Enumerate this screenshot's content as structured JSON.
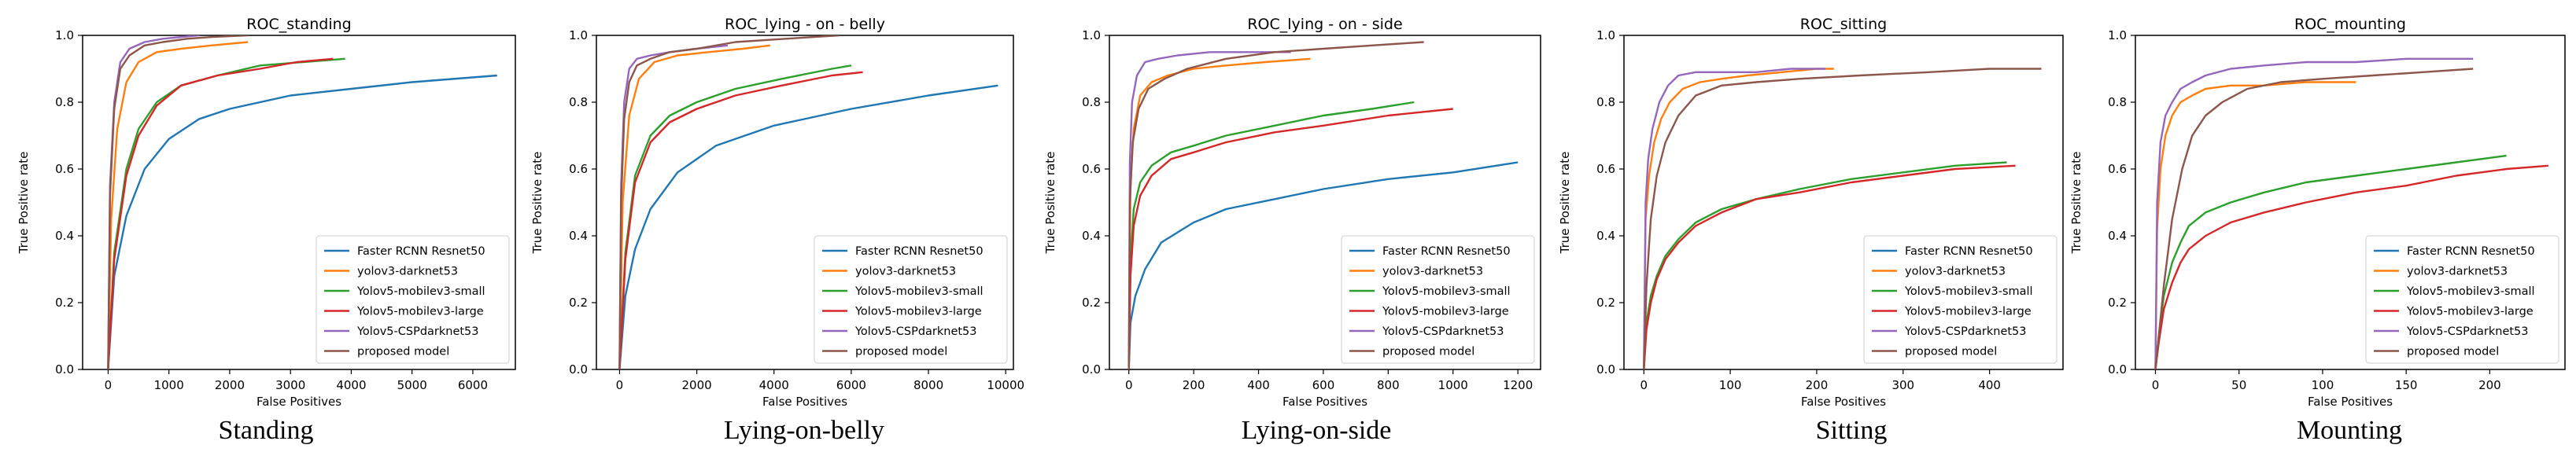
{
  "figure": {
    "colors": {
      "faster_rcnn": "#1f77b4",
      "yolov3": "#ff7f0e",
      "small": "#2ca02c",
      "large": "#d62728",
      "csp": "#9467bd",
      "proposed": "#8c564b"
    }
  },
  "chart_data": [
    {
      "type": "line",
      "title": "ROC_standing",
      "caption": "Standing",
      "xlabel": "False Positives",
      "ylabel": "True Positive rate",
      "xlim": [
        -420,
        6700
      ],
      "ylim": [
        0,
        1.0
      ],
      "xticks": [
        0,
        1000,
        2000,
        3000,
        4000,
        5000,
        6000
      ],
      "yticks": [
        0.0,
        0.2,
        0.4,
        0.6,
        0.8,
        1.0
      ],
      "grid": false,
      "legend_position": "lower-right",
      "series": [
        {
          "name": "Faster RCNN Resnet50",
          "color_key": "faster_rcnn",
          "x": [
            0,
            100,
            300,
            600,
            1000,
            1500,
            2000,
            3000,
            4000,
            5000,
            6400
          ],
          "y": [
            0.0,
            0.28,
            0.46,
            0.6,
            0.69,
            0.75,
            0.78,
            0.82,
            0.84,
            0.86,
            0.88
          ]
        },
        {
          "name": "yolov3-darknet53",
          "color_key": "yolov3",
          "x": [
            0,
            50,
            150,
            300,
            500,
            800,
            1200,
            1700,
            2300
          ],
          "y": [
            0.0,
            0.45,
            0.72,
            0.86,
            0.92,
            0.95,
            0.96,
            0.97,
            0.98
          ]
        },
        {
          "name": "Yolov5-mobilev3-small",
          "color_key": "small",
          "x": [
            0,
            100,
            300,
            500,
            800,
            1200,
            1800,
            2500,
            3200,
            3900
          ],
          "y": [
            0.0,
            0.35,
            0.6,
            0.72,
            0.8,
            0.85,
            0.88,
            0.91,
            0.92,
            0.93
          ]
        },
        {
          "name": "Yolov5-mobilev3-large",
          "color_key": "large",
          "x": [
            0,
            100,
            300,
            500,
            800,
            1200,
            1800,
            2500,
            3100,
            3700
          ],
          "y": [
            0.0,
            0.33,
            0.58,
            0.7,
            0.79,
            0.85,
            0.88,
            0.9,
            0.92,
            0.93
          ]
        },
        {
          "name": "Yolov5-CSPdarknet53",
          "color_key": "csp",
          "x": [
            0,
            30,
            100,
            200,
            350,
            600,
            900,
            1200,
            1500
          ],
          "y": [
            0.0,
            0.55,
            0.8,
            0.92,
            0.96,
            0.98,
            0.99,
            0.995,
            1.0
          ]
        },
        {
          "name": "proposed model",
          "color_key": "proposed",
          "x": [
            0,
            30,
            100,
            200,
            350,
            600,
            900,
            1300,
            1700,
            2300
          ],
          "y": [
            0.0,
            0.52,
            0.78,
            0.9,
            0.94,
            0.97,
            0.98,
            0.99,
            0.995,
            1.0
          ]
        }
      ]
    },
    {
      "type": "line",
      "title": "ROC_lying - on - belly",
      "caption": "Lying-on-belly",
      "xlabel": "False Positives",
      "ylabel": "True Positive rate",
      "xlim": [
        -600,
        10200
      ],
      "ylim": [
        0,
        1.0
      ],
      "xticks": [
        0,
        2000,
        4000,
        6000,
        8000,
        10000
      ],
      "yticks": [
        0.0,
        0.2,
        0.4,
        0.6,
        0.8,
        1.0
      ],
      "grid": false,
      "legend_position": "lower-right",
      "series": [
        {
          "name": "Faster RCNN Resnet50",
          "color_key": "faster_rcnn",
          "x": [
            0,
            150,
            400,
            800,
            1500,
            2500,
            4000,
            6000,
            8000,
            9800
          ],
          "y": [
            0.0,
            0.22,
            0.36,
            0.48,
            0.59,
            0.67,
            0.73,
            0.78,
            0.82,
            0.85
          ]
        },
        {
          "name": "yolov3-darknet53",
          "color_key": "yolov3",
          "x": [
            0,
            80,
            250,
            500,
            900,
            1500,
            2300,
            3200,
            3900
          ],
          "y": [
            0.0,
            0.5,
            0.76,
            0.87,
            0.92,
            0.94,
            0.95,
            0.96,
            0.97
          ]
        },
        {
          "name": "Yolov5-mobilev3-small",
          "color_key": "small",
          "x": [
            0,
            150,
            400,
            800,
            1300,
            2000,
            3000,
            4200,
            5500,
            6000
          ],
          "y": [
            0.0,
            0.35,
            0.58,
            0.7,
            0.76,
            0.8,
            0.84,
            0.87,
            0.9,
            0.91
          ]
        },
        {
          "name": "Yolov5-mobilev3-large",
          "color_key": "large",
          "x": [
            0,
            150,
            400,
            800,
            1300,
            2000,
            3000,
            4200,
            5500,
            6300
          ],
          "y": [
            0.0,
            0.33,
            0.56,
            0.68,
            0.74,
            0.78,
            0.82,
            0.85,
            0.88,
            0.89
          ]
        },
        {
          "name": "Yolov5-CSPdarknet53",
          "color_key": "csp",
          "x": [
            0,
            40,
            120,
            250,
            450,
            800,
            1300,
            2000,
            2800
          ],
          "y": [
            0.0,
            0.55,
            0.8,
            0.9,
            0.93,
            0.94,
            0.95,
            0.96,
            0.97
          ]
        },
        {
          "name": "proposed model",
          "color_key": "proposed",
          "x": [
            0,
            40,
            120,
            250,
            450,
            800,
            1300,
            2000,
            3000,
            4300,
            5700
          ],
          "y": [
            0.0,
            0.5,
            0.75,
            0.86,
            0.91,
            0.93,
            0.95,
            0.96,
            0.98,
            0.99,
            1.0
          ]
        }
      ]
    },
    {
      "type": "line",
      "title": "ROC_lying - on - side",
      "caption": "Lying-on-side",
      "xlabel": "False Positives",
      "ylabel": "True Positive rate",
      "xlim": [
        -60,
        1270
      ],
      "ylim": [
        0,
        1.0
      ],
      "xticks": [
        0,
        200,
        400,
        600,
        800,
        1000,
        1200
      ],
      "yticks": [
        0.0,
        0.2,
        0.4,
        0.6,
        0.8,
        1.0
      ],
      "grid": false,
      "legend_position": "lower-right",
      "series": [
        {
          "name": "Faster RCNN Resnet50",
          "color_key": "faster_rcnn",
          "x": [
            0,
            5,
            20,
            50,
            100,
            200,
            300,
            450,
            600,
            800,
            1000,
            1200
          ],
          "y": [
            0.0,
            0.14,
            0.22,
            0.3,
            0.38,
            0.44,
            0.48,
            0.51,
            0.54,
            0.57,
            0.59,
            0.62
          ]
        },
        {
          "name": "yolov3-darknet53",
          "color_key": "yolov3",
          "x": [
            0,
            5,
            15,
            35,
            70,
            120,
            200,
            300,
            420,
            560
          ],
          "y": [
            0.0,
            0.55,
            0.72,
            0.82,
            0.86,
            0.88,
            0.9,
            0.91,
            0.92,
            0.93
          ]
        },
        {
          "name": "Yolov5-mobilev3-small",
          "color_key": "small",
          "x": [
            0,
            5,
            15,
            35,
            70,
            130,
            200,
            300,
            450,
            600,
            750,
            880
          ],
          "y": [
            0.0,
            0.32,
            0.48,
            0.56,
            0.61,
            0.65,
            0.67,
            0.7,
            0.73,
            0.76,
            0.78,
            0.8
          ]
        },
        {
          "name": "Yolov5-mobilev3-large",
          "color_key": "large",
          "x": [
            0,
            5,
            15,
            35,
            70,
            130,
            200,
            300,
            450,
            600,
            800,
            1000
          ],
          "y": [
            0.0,
            0.28,
            0.43,
            0.52,
            0.58,
            0.63,
            0.65,
            0.68,
            0.71,
            0.73,
            0.76,
            0.78
          ]
        },
        {
          "name": "Yolov5-CSPdarknet53",
          "color_key": "csp",
          "x": [
            0,
            3,
            10,
            25,
            50,
            90,
            150,
            250,
            380,
            500
          ],
          "y": [
            0.0,
            0.62,
            0.8,
            0.88,
            0.92,
            0.93,
            0.94,
            0.95,
            0.95,
            0.95
          ]
        },
        {
          "name": "proposed model",
          "color_key": "proposed",
          "x": [
            0,
            3,
            12,
            30,
            60,
            110,
            180,
            300,
            450,
            600,
            750,
            910
          ],
          "y": [
            0.0,
            0.5,
            0.68,
            0.78,
            0.84,
            0.87,
            0.9,
            0.93,
            0.95,
            0.96,
            0.97,
            0.98
          ]
        }
      ]
    },
    {
      "type": "line",
      "title": "ROC_sitting",
      "caption": "Sitting",
      "xlabel": "False Positives",
      "ylabel": "True Positive rate",
      "xlim": [
        -23,
        485
      ],
      "ylim": [
        0,
        1.0
      ],
      "xticks": [
        0,
        100,
        200,
        300,
        400
      ],
      "yticks": [
        0.0,
        0.2,
        0.4,
        0.6,
        0.8,
        1.0
      ],
      "grid": false,
      "legend_position": "lower-right",
      "series": [
        {
          "name": "Faster RCNN Resnet50",
          "color_key": "faster_rcnn",
          "x": [],
          "y": []
        },
        {
          "name": "yolov3-darknet53",
          "color_key": "yolov3",
          "x": [
            0,
            2,
            6,
            12,
            20,
            30,
            45,
            65,
            90,
            120,
            160,
            200,
            220
          ],
          "y": [
            0.0,
            0.45,
            0.58,
            0.68,
            0.75,
            0.8,
            0.84,
            0.86,
            0.87,
            0.88,
            0.89,
            0.9,
            0.9
          ]
        },
        {
          "name": "Yolov5-mobilev3-small",
          "color_key": "small",
          "x": [
            0,
            3,
            8,
            15,
            25,
            40,
            60,
            90,
            130,
            180,
            240,
            300,
            360,
            420
          ],
          "y": [
            0.0,
            0.14,
            0.22,
            0.28,
            0.34,
            0.39,
            0.44,
            0.48,
            0.51,
            0.54,
            0.57,
            0.59,
            0.61,
            0.62
          ]
        },
        {
          "name": "Yolov5-mobilev3-large",
          "color_key": "large",
          "x": [
            0,
            3,
            8,
            15,
            25,
            40,
            60,
            90,
            130,
            180,
            240,
            300,
            360,
            430
          ],
          "y": [
            0.0,
            0.12,
            0.2,
            0.27,
            0.33,
            0.38,
            0.43,
            0.47,
            0.51,
            0.53,
            0.56,
            0.58,
            0.6,
            0.61
          ]
        },
        {
          "name": "Yolov5-CSPdarknet53",
          "color_key": "csp",
          "x": [
            0,
            2,
            5,
            10,
            18,
            28,
            40,
            60,
            90,
            130,
            170,
            210
          ],
          "y": [
            0.0,
            0.5,
            0.63,
            0.72,
            0.8,
            0.85,
            0.88,
            0.89,
            0.89,
            0.89,
            0.9,
            0.9
          ]
        },
        {
          "name": "proposed model",
          "color_key": "proposed",
          "x": [
            0,
            3,
            8,
            15,
            25,
            40,
            60,
            90,
            130,
            180,
            250,
            330,
            400,
            460
          ],
          "y": [
            0.0,
            0.25,
            0.45,
            0.58,
            0.68,
            0.76,
            0.82,
            0.85,
            0.86,
            0.87,
            0.88,
            0.89,
            0.9,
            0.9
          ]
        }
      ]
    },
    {
      "type": "line",
      "title": "ROC_mounting",
      "caption": "Mounting",
      "xlabel": "False Positives",
      "ylabel": "True Positive rate",
      "xlim": [
        -12,
        245
      ],
      "ylim": [
        0,
        1.0
      ],
      "xticks": [
        0,
        50,
        100,
        150,
        200
      ],
      "yticks": [
        0.0,
        0.2,
        0.4,
        0.6,
        0.8,
        1.0
      ],
      "grid": false,
      "legend_position": "lower-right",
      "series": [
        {
          "name": "Faster RCNN Resnet50",
          "color_key": "faster_rcnn",
          "x": [],
          "y": []
        },
        {
          "name": "yolov3-darknet53",
          "color_key": "yolov3",
          "x": [
            0,
            1,
            3,
            6,
            10,
            15,
            22,
            30,
            45,
            65,
            90,
            120
          ],
          "y": [
            0.0,
            0.42,
            0.6,
            0.7,
            0.76,
            0.8,
            0.82,
            0.84,
            0.85,
            0.85,
            0.86,
            0.86
          ]
        },
        {
          "name": "Yolov5-mobilev3-small",
          "color_key": "small",
          "x": [
            0,
            2,
            5,
            10,
            15,
            20,
            30,
            45,
            65,
            90,
            120,
            150,
            180,
            210
          ],
          "y": [
            0.0,
            0.1,
            0.22,
            0.32,
            0.38,
            0.43,
            0.47,
            0.5,
            0.53,
            0.56,
            0.58,
            0.6,
            0.62,
            0.64
          ]
        },
        {
          "name": "Yolov5-mobilev3-large",
          "color_key": "large",
          "x": [
            0,
            2,
            5,
            10,
            15,
            20,
            30,
            45,
            65,
            90,
            120,
            150,
            180,
            210,
            235
          ],
          "y": [
            0.0,
            0.08,
            0.18,
            0.26,
            0.32,
            0.36,
            0.4,
            0.44,
            0.47,
            0.5,
            0.53,
            0.55,
            0.58,
            0.6,
            0.61
          ]
        },
        {
          "name": "Yolov5-CSPdarknet53",
          "color_key": "csp",
          "x": [
            0,
            1,
            3,
            6,
            10,
            15,
            22,
            30,
            45,
            65,
            90,
            120,
            150,
            190
          ],
          "y": [
            0.0,
            0.5,
            0.68,
            0.76,
            0.8,
            0.84,
            0.86,
            0.88,
            0.9,
            0.91,
            0.92,
            0.92,
            0.93,
            0.93
          ]
        },
        {
          "name": "proposed model",
          "color_key": "proposed",
          "x": [
            0,
            2,
            5,
            10,
            16,
            22,
            30,
            40,
            55,
            75,
            100,
            130,
            160,
            190
          ],
          "y": [
            0.0,
            0.1,
            0.25,
            0.45,
            0.6,
            0.7,
            0.76,
            0.8,
            0.84,
            0.86,
            0.87,
            0.88,
            0.89,
            0.9
          ]
        }
      ]
    }
  ]
}
